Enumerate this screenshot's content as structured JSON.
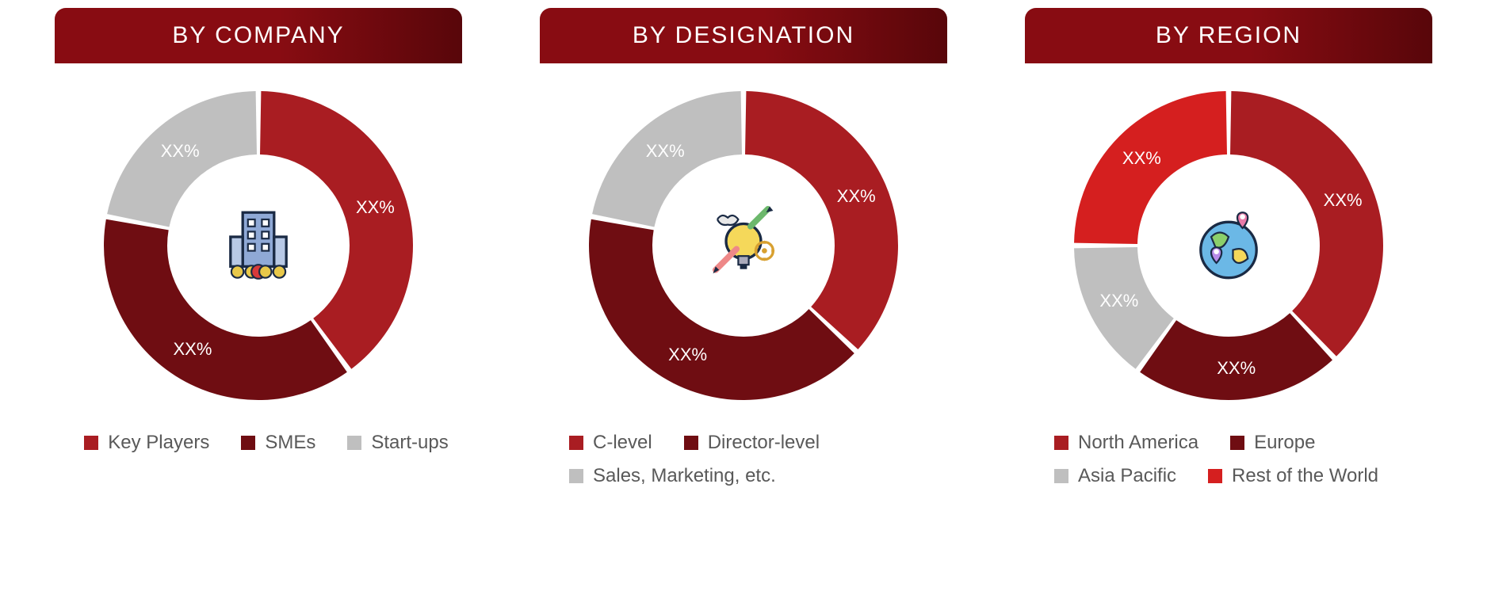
{
  "background_color": "#ffffff",
  "header_gradient_from": "#880c12",
  "header_gradient_to": "#58060a",
  "header_text_color": "#ffffff",
  "header_fontsize": 30,
  "legend_text_color": "#595959",
  "legend_fontsize": 24,
  "slice_label_color": "#ffffff",
  "slice_label_fontsize": 22,
  "donut_outer_radius": 195,
  "donut_inner_radius": 115,
  "slice_gap_deg": 2,
  "panels": [
    {
      "title": "BY COMPANY",
      "icon": "building",
      "slices": [
        {
          "label": "XX%",
          "value": 40,
          "color": "#a91d22",
          "legend": "Key Players"
        },
        {
          "label": "XX%",
          "value": 38,
          "color": "#6f0d12",
          "legend": "SMEs"
        },
        {
          "label": "XX%",
          "value": 22,
          "color": "#bfbfbf",
          "legend": "Start-ups"
        }
      ]
    },
    {
      "title": "BY DESIGNATION",
      "icon": "idea",
      "slices": [
        {
          "label": "XX%",
          "value": 37,
          "color": "#a91d22",
          "legend": "C-level"
        },
        {
          "label": "XX%",
          "value": 41,
          "color": "#6f0d12",
          "legend": "Director-level"
        },
        {
          "label": "XX%",
          "value": 22,
          "color": "#bfbfbf",
          "legend": "Sales, Marketing, etc."
        }
      ]
    },
    {
      "title": "BY REGION",
      "icon": "globe",
      "slices": [
        {
          "label": "XX%",
          "value": 38,
          "color": "#a91d22",
          "legend": "North America"
        },
        {
          "label": "XX%",
          "value": 22,
          "color": "#6f0d12",
          "legend": "Europe"
        },
        {
          "label": "XX%",
          "value": 15,
          "color": "#bfbfbf",
          "legend": "Asia Pacific"
        },
        {
          "label": "XX%",
          "value": 25,
          "color": "#d51f1f",
          "legend": "Rest of the World"
        }
      ]
    }
  ]
}
